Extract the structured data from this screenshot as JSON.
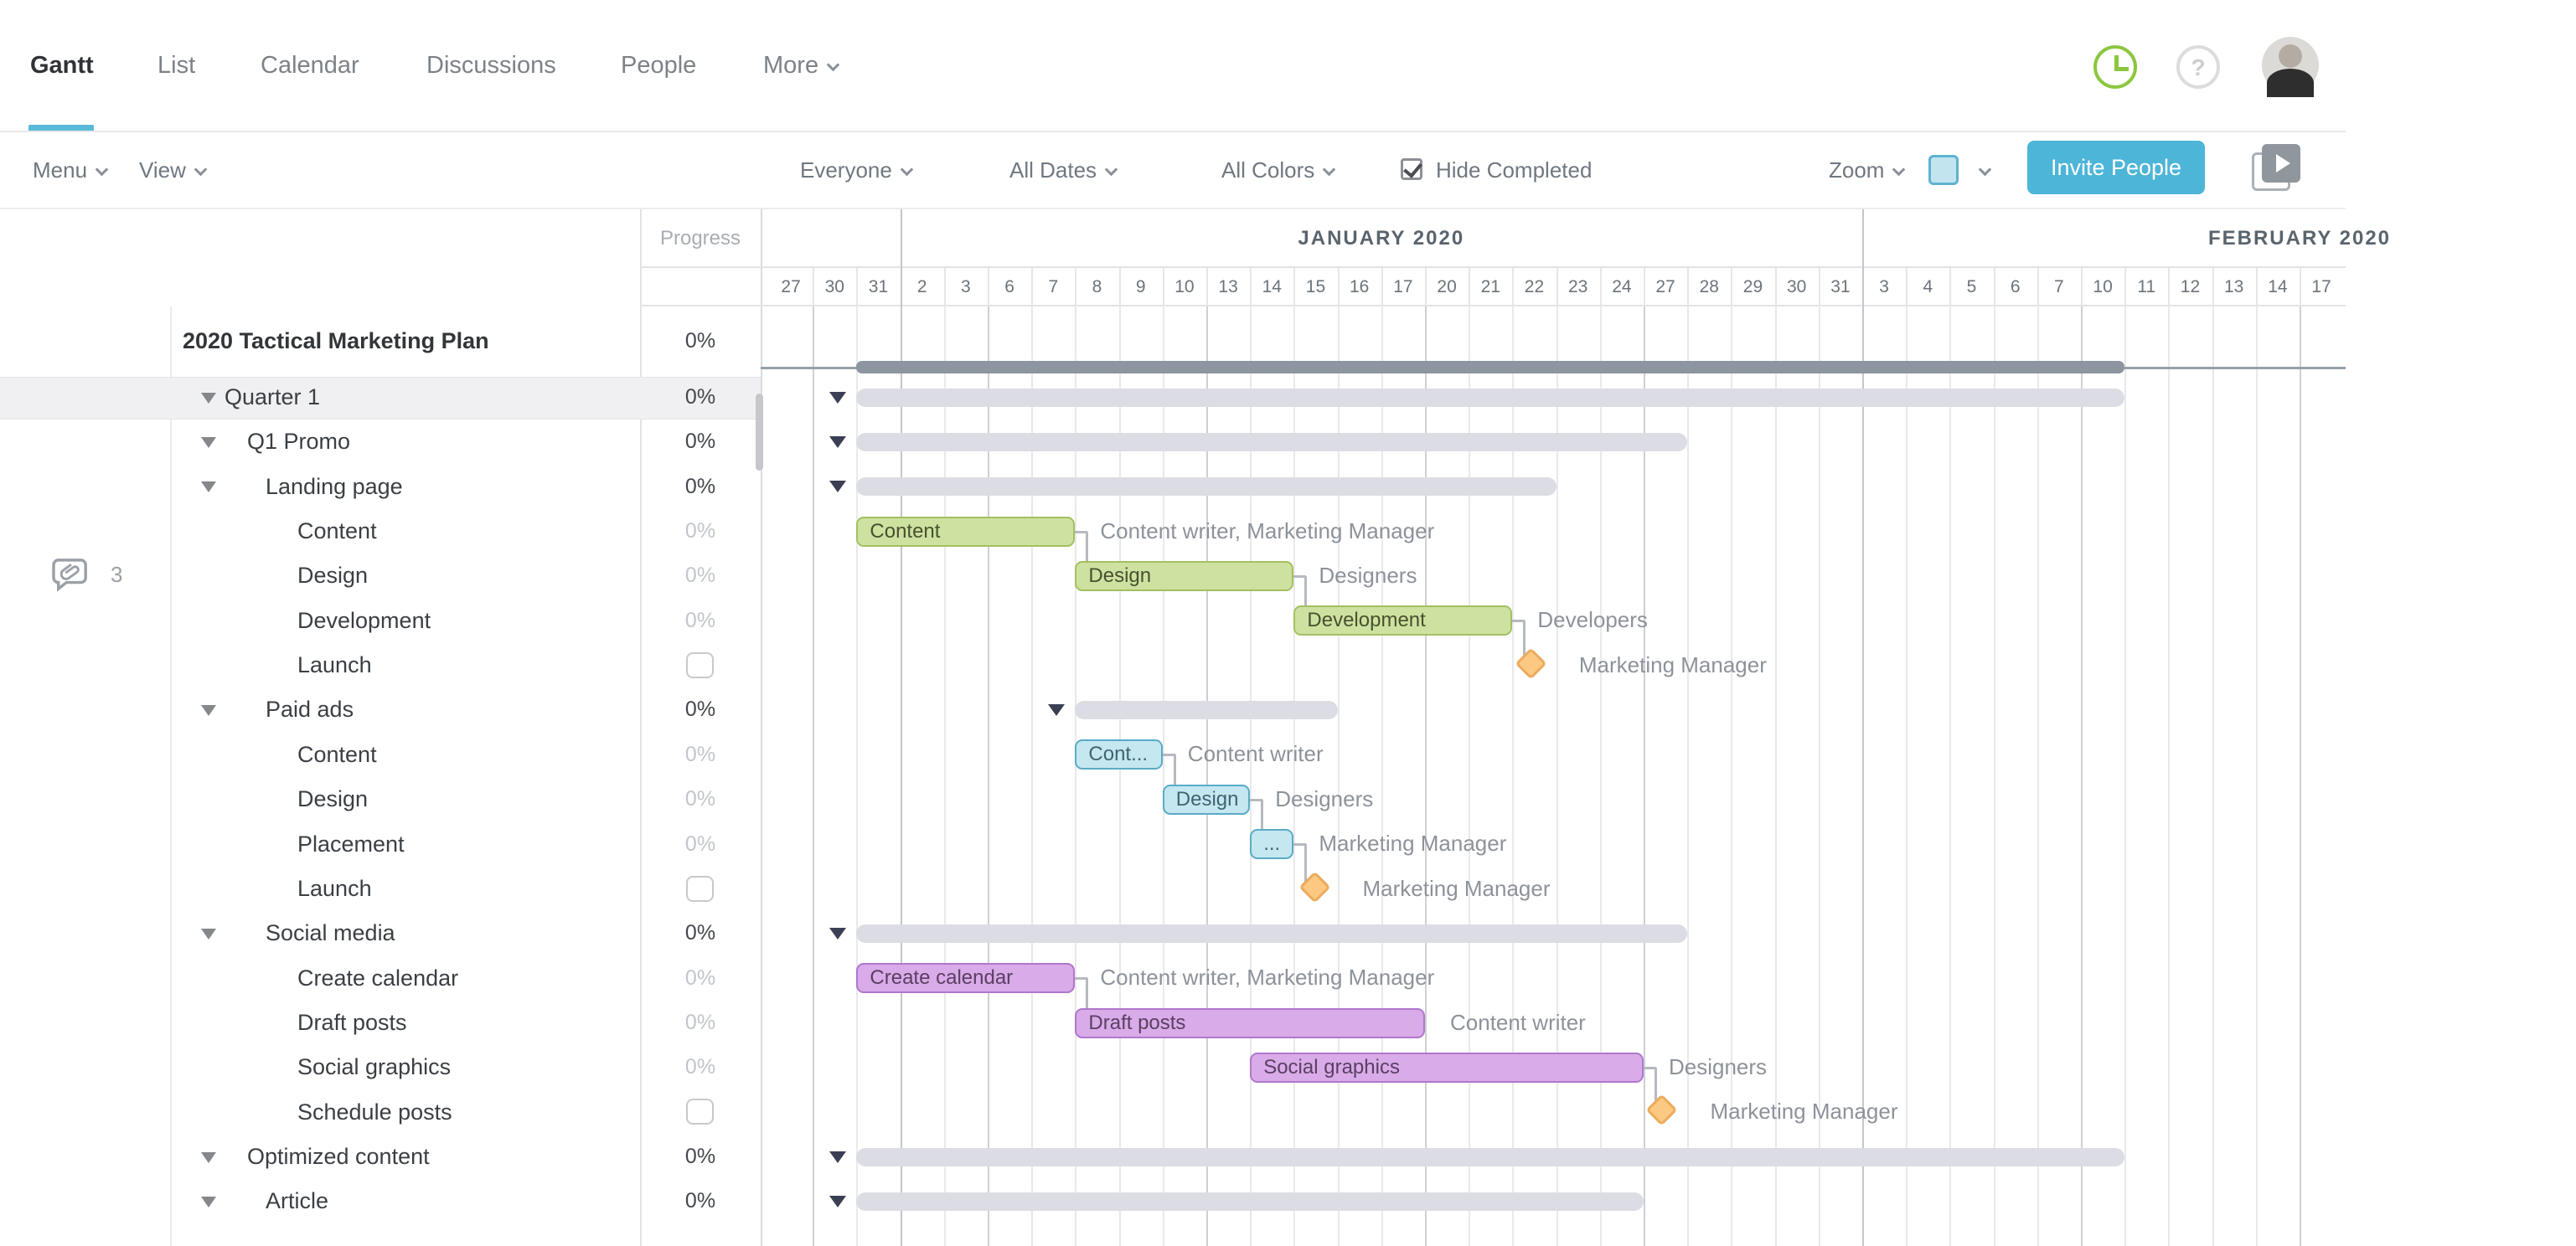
{
  "nav": {
    "tabs": [
      {
        "label": "Gantt",
        "active": true
      },
      {
        "label": "List",
        "active": false
      },
      {
        "label": "Calendar",
        "active": false
      },
      {
        "label": "Discussions",
        "active": false
      },
      {
        "label": "People",
        "active": false
      },
      {
        "label": "More",
        "active": false,
        "has_chevron": true
      }
    ],
    "icons": [
      {
        "name": "clock-icon",
        "color": "#8cc63f"
      },
      {
        "name": "help-icon",
        "color": "#d9d9dc"
      },
      {
        "name": "avatar"
      }
    ]
  },
  "toolbar": {
    "menu_label": "Menu",
    "view_label": "View",
    "people_filter": "Everyone",
    "date_filter": "All Dates",
    "color_filter": "All Colors",
    "hide_completed_label": "Hide Completed",
    "hide_completed_checked": true,
    "zoom_label": "Zoom",
    "color_swatch": "#c2e4ef",
    "invite_label": "Invite People",
    "accent_color": "#4db5d8"
  },
  "table": {
    "progress_header": "Progress"
  },
  "timeline": {
    "months": [
      {
        "label": "JANUARY 2020",
        "centerCol": 14
      },
      {
        "label": "FEBRUARY 2020",
        "centerCol": 35
      }
    ],
    "days": [
      "27",
      "30",
      "31",
      "2",
      "3",
      "6",
      "7",
      "8",
      "9",
      "10",
      "13",
      "14",
      "15",
      "16",
      "17",
      "20",
      "21",
      "22",
      "23",
      "24",
      "27",
      "28",
      "29",
      "30",
      "31",
      "3",
      "4",
      "5",
      "6",
      "7",
      "10",
      "11",
      "12",
      "13",
      "14",
      "17"
    ],
    "month_boundary_cols": [
      3,
      25
    ],
    "week_boundary_cols": [
      1,
      5,
      10,
      15,
      20,
      30,
      35
    ]
  },
  "rows": [
    {
      "name": "2020 Tactical Marketing Plan",
      "type": "project",
      "level": 0,
      "progress": "0%",
      "bar": {
        "startCol": 2,
        "endCol": 31
      }
    },
    {
      "name": "Quarter 1",
      "type": "group",
      "level": 1,
      "progress": "0%",
      "highlighted": true,
      "bar": {
        "startCol": 2,
        "endCol": 31
      }
    },
    {
      "name": "Q1 Promo",
      "type": "group",
      "level": 2,
      "progress": "0%",
      "bar": {
        "startCol": 2,
        "endCol": 21
      }
    },
    {
      "name": "Landing page",
      "type": "group",
      "level": 3,
      "progress": "0%",
      "bar": {
        "startCol": 2,
        "endCol": 18
      }
    },
    {
      "name": "Content",
      "type": "task",
      "level": 4,
      "progress": "0%",
      "bar": {
        "startCol": 2,
        "endCol": 7,
        "color": "green",
        "label": "Content"
      },
      "assignees": "Content writer, Marketing Manager",
      "connect_to_next": true
    },
    {
      "name": "Design",
      "type": "task",
      "level": 4,
      "progress": "0%",
      "comments": "3",
      "bar": {
        "startCol": 7,
        "endCol": 12,
        "color": "green",
        "label": "Design"
      },
      "assignees": "Designers",
      "connect_to_next": true
    },
    {
      "name": "Development",
      "type": "task",
      "level": 4,
      "progress": "0%",
      "bar": {
        "startCol": 12,
        "endCol": 17,
        "color": "green",
        "label": "Development"
      },
      "assignees": "Developers",
      "connect_to_next": true
    },
    {
      "name": "Launch",
      "type": "milestone",
      "level": 4,
      "milestoneCol": 17.45,
      "assignees": "Marketing Manager"
    },
    {
      "name": "Paid ads",
      "type": "group",
      "level": 3,
      "progress": "0%",
      "bar": {
        "startCol": 7,
        "endCol": 13
      }
    },
    {
      "name": "Content",
      "type": "task",
      "level": 4,
      "progress": "0%",
      "bar": {
        "startCol": 7,
        "endCol": 9,
        "color": "blue",
        "label": "Cont..."
      },
      "assignees": "Content writer",
      "connect_to_next": true
    },
    {
      "name": "Design",
      "type": "task",
      "level": 4,
      "progress": "0%",
      "bar": {
        "startCol": 9,
        "endCol": 11,
        "color": "blue",
        "label": "Design"
      },
      "assignees": "Designers",
      "connect_to_next": true
    },
    {
      "name": "Placement",
      "type": "task",
      "level": 4,
      "progress": "0%",
      "bar": {
        "startCol": 11,
        "endCol": 12,
        "color": "blue",
        "label": "..."
      },
      "assignees": "Marketing Manager",
      "connect_to_next": true
    },
    {
      "name": "Launch",
      "type": "milestone",
      "level": 4,
      "milestoneCol": 12.5,
      "assignees": "Marketing Manager"
    },
    {
      "name": "Social media",
      "type": "group",
      "level": 3,
      "progress": "0%",
      "bar": {
        "startCol": 2,
        "endCol": 21
      }
    },
    {
      "name": "Create calendar",
      "type": "task",
      "level": 4,
      "progress": "0%",
      "bar": {
        "startCol": 2,
        "endCol": 7,
        "color": "purple",
        "label": "Create calendar"
      },
      "assignees": "Content writer, Marketing Manager",
      "connect_to_next": true
    },
    {
      "name": "Draft posts",
      "type": "task",
      "level": 4,
      "progress": "0%",
      "bar": {
        "startCol": 7,
        "endCol": 15,
        "color": "purple",
        "label": "Draft posts"
      },
      "assignees": "Content writer"
    },
    {
      "name": "Social graphics",
      "type": "task",
      "level": 4,
      "progress": "0%",
      "bar": {
        "startCol": 11,
        "endCol": 20,
        "color": "purple",
        "label": "Social graphics"
      },
      "assignees": "Designers",
      "connect_to_next": true
    },
    {
      "name": "Schedule posts",
      "type": "milestone",
      "level": 4,
      "milestoneCol": 20.45,
      "assignees": "Marketing Manager"
    },
    {
      "name": "Optimized content",
      "type": "group",
      "level": 2,
      "progress": "0%",
      "bar": {
        "startCol": 2,
        "endCol": 31
      }
    },
    {
      "name": "Article",
      "type": "group",
      "level": 3,
      "progress": "0%",
      "bar": {
        "startCol": 2,
        "endCol": 20
      }
    }
  ],
  "colors": {
    "green_fill": "#cde2a0",
    "green_border": "#a3c062",
    "blue_fill": "#c4e7f0",
    "blue_border": "#5aabc6",
    "purple_fill": "#d9abe8",
    "purple_border": "#b077cc",
    "summary_fill": "#dcdde4",
    "project_fill": "#8c95a0",
    "milestone_fill": "#fbc981",
    "milestone_border": "#edab5e",
    "accent": "#4db5d8"
  }
}
